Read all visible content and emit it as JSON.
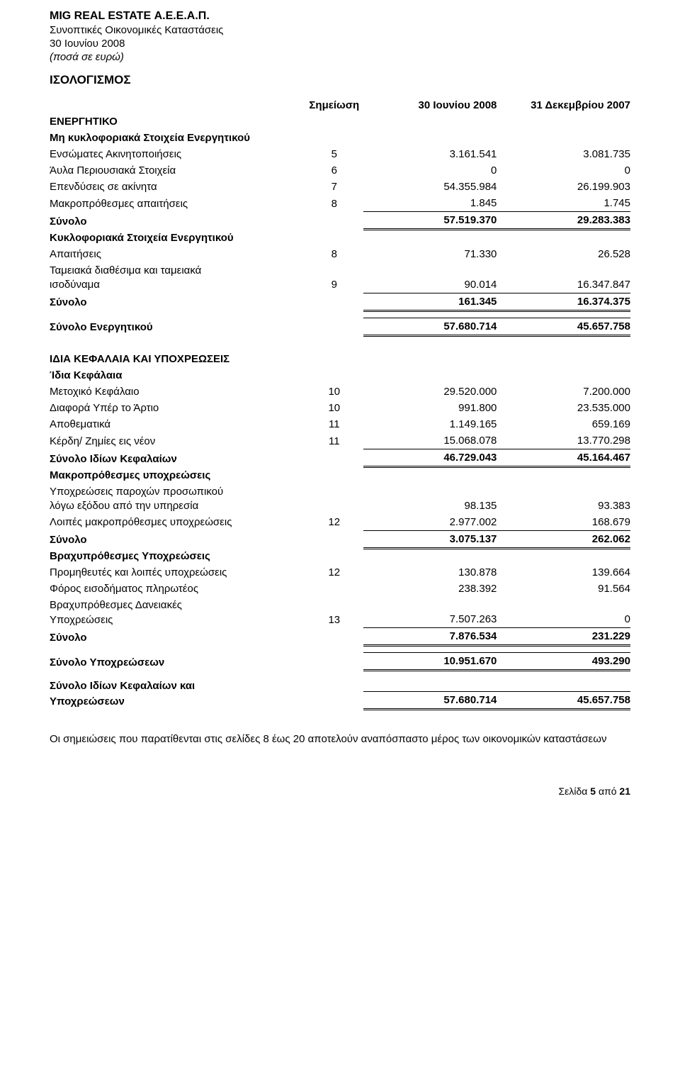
{
  "header": {
    "company": "MIG REAL ESTATE Α.Ε.Ε.Α.Π.",
    "subtitle": "Συνοπτικές Οικονομικές Καταστάσεις",
    "date": "30 Ιουνίου 2008",
    "note_italic": "(ποσά σε ευρώ)",
    "section": "ΙΣΟΛΟΓΙΣΜΟΣ"
  },
  "cols": {
    "note": "Σημείωση",
    "c1": "30 Ιουνίου 2008",
    "c2": "31 Δεκεμβρίου 2007"
  },
  "assets": {
    "title": "ΕΝΕΡΓΗΤΙΚΟ",
    "noncurrent_title": "Μη κυκλοφοριακά Στοιχεία Ενεργητικού",
    "rows": {
      "r1": {
        "label": "Ενσώματες Ακινητοποιήσεις",
        "note": "5",
        "v1": "3.161.541",
        "v2": "3.081.735"
      },
      "r2": {
        "label": "Άυλα Περιουσιακά Στοιχεία",
        "note": "6",
        "v1": "0",
        "v2": "0"
      },
      "r3": {
        "label": "Επενδύσεις σε ακίνητα",
        "note": "7",
        "v1": "54.355.984",
        "v2": "26.199.903"
      },
      "r4": {
        "label": "Μακροπρόθεσμες απαιτήσεις",
        "note": "8",
        "v1": "1.845",
        "v2": "1.745"
      },
      "sub1": {
        "label": "Σύνολο",
        "v1": "57.519.370",
        "v2": "29.283.383"
      }
    },
    "current_title": "Κυκλοφοριακά  Στοιχεία Ενεργητικού",
    "crows": {
      "r1": {
        "label": "Απαιτήσεις",
        "note": "8",
        "v1": "71.330",
        "v2": "26.528"
      },
      "r2a": {
        "label": "Ταμειακά διαθέσιμα και ταμειακά"
      },
      "r2b": {
        "label": "ισοδύναμα",
        "note": "9",
        "v1": "90.014",
        "v2": "16.347.847"
      },
      "sub2": {
        "label": "Σύνολο",
        "v1": "161.345",
        "v2": "16.374.375"
      }
    },
    "total": {
      "label": "Σύνολο Ενεργητικού",
      "v1": "57.680.714",
      "v2": "45.657.758"
    }
  },
  "liab": {
    "title": "ΙΔΙΑ ΚΕΦΑΛΑΙΑ ΚΑΙ ΥΠΟΧΡΕΩΣΕΙΣ",
    "equity_title": "Ίδια Κεφάλαια",
    "erows": {
      "r1": {
        "label": "Μετοχικό Κεφάλαιο",
        "note": "10",
        "v1": "29.520.000",
        "v2": "7.200.000"
      },
      "r2": {
        "label": "Διαφορά Υπέρ το Άρτιο",
        "note": "10",
        "v1": "991.800",
        "v2": "23.535.000"
      },
      "r3": {
        "label": "Αποθεματικά",
        "note": "11",
        "v1": "1.149.165",
        "v2": "659.169"
      },
      "r4": {
        "label": "Κέρδη/ Ζημίες εις νέον",
        "note": "11",
        "v1": "15.068.078",
        "v2": "13.770.298"
      },
      "sub": {
        "label": "Σύνολο Ιδίων Κεφαλαίων",
        "v1": "46.729.043",
        "v2": "45.164.467"
      }
    },
    "lt_title": "Μακροπρόθεσμες υποχρεώσεις",
    "ltrows": {
      "r1a": {
        "label": "Υποχρεώσεις παροχών προσωπικού"
      },
      "r1b": {
        "label": "λόγω εξόδου από την υπηρεσία",
        "v1": "98.135",
        "v2": "93.383"
      },
      "r2": {
        "label": "Λοιπές μακροπρόθεσμες υποχρεώσεις",
        "note": "12",
        "v1": "2.977.002",
        "v2": "168.679"
      },
      "sub": {
        "label": "Σύνολο",
        "v1": "3.075.137",
        "v2": "262.062"
      }
    },
    "st_title": "Βραχυπρόθεσμες Υποχρεώσεις",
    "strows": {
      "r1": {
        "label": "Προμηθευτές και λοιπές υποχρεώσεις",
        "note": "12",
        "v1": "130.878",
        "v2": "139.664"
      },
      "r2": {
        "label": "Φόρος εισοδήματος πληρωτέος",
        "v1": "238.392",
        "v2": "91.564"
      },
      "r3a": {
        "label": "Βραχυπρόθεσμες Δανειακές"
      },
      "r3b": {
        "label": "Υποχρεώσεις",
        "note": "13",
        "v1": "7.507.263",
        "v2": "0"
      },
      "sub": {
        "label": "Σύνολο",
        "v1": "7.876.534",
        "v2": "231.229"
      }
    },
    "total_liab": {
      "label": "Σύνολο Υποχρεώσεων",
      "v1": "10.951.670",
      "v2": "493.290"
    },
    "grand_a": {
      "label": "Σύνολο Ιδίων Κεφαλαίων και"
    },
    "grand_b": {
      "label": "Υποχρεώσεων",
      "v1": "57.680.714",
      "v2": "45.657.758"
    }
  },
  "footnote": "Οι σημειώσεις που παρατίθενται στις σελίδες 8 έως 20 αποτελούν αναπόσπαστο μέρος των οικονομικών καταστάσεων",
  "pagenum_prefix": "Σελίδα ",
  "pagenum_bold": "5",
  "pagenum_suffix": " από ",
  "pagenum_total": "21"
}
